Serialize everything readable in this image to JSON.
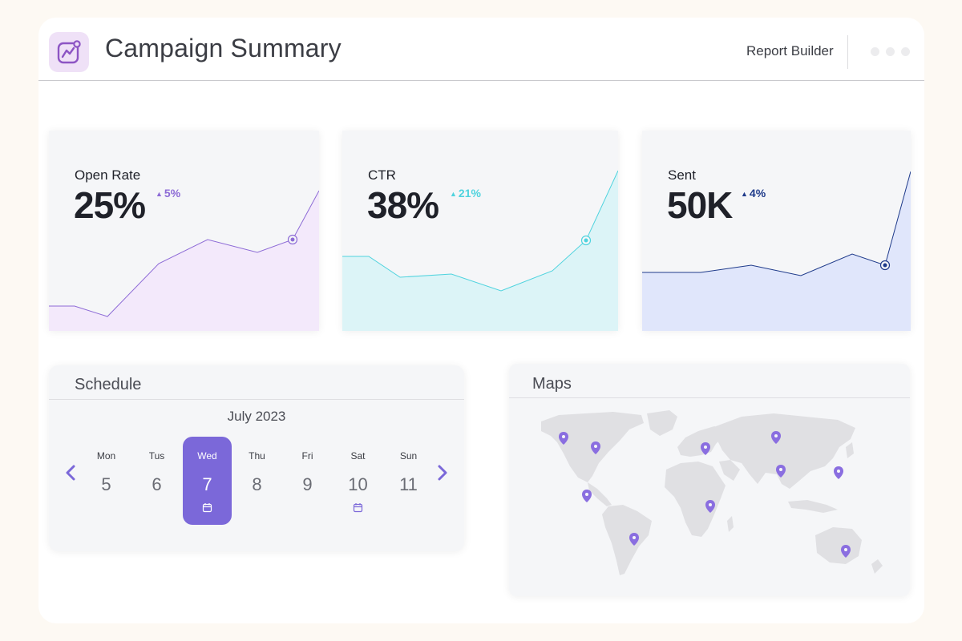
{
  "header": {
    "title": "Campaign Summary",
    "report_builder_label": "Report Builder",
    "logo_icon": "trend-chart-icon",
    "menu_icon": "more-dots-icon"
  },
  "metrics": [
    {
      "label": "Open Rate",
      "value": "25%",
      "delta": "5%",
      "trend": "up",
      "color": "#8d6bd6",
      "fill": "#f3e9fb"
    },
    {
      "label": "CTR",
      "value": "38%",
      "delta": "21%",
      "trend": "up",
      "color": "#4fd3de",
      "fill": "#dcf4f7"
    },
    {
      "label": "Sent",
      "value": "50K",
      "delta": "4%",
      "trend": "up",
      "color": "#1e3a8a",
      "fill": "#e0e6fb"
    }
  ],
  "schedule": {
    "title": "Schedule",
    "month": "July 2023",
    "prev_icon": "chevron-left-icon",
    "next_icon": "chevron-right-icon",
    "days": [
      {
        "name": "Mon",
        "num": "5",
        "selected": false,
        "event": false
      },
      {
        "name": "Tus",
        "num": "6",
        "selected": false,
        "event": false
      },
      {
        "name": "Wed",
        "num": "7",
        "selected": true,
        "event": true
      },
      {
        "name": "Thu",
        "num": "8",
        "selected": false,
        "event": false
      },
      {
        "name": "Fri",
        "num": "9",
        "selected": false,
        "event": false
      },
      {
        "name": "Sat",
        "num": "10",
        "selected": false,
        "event": true
      },
      {
        "name": "Sun",
        "num": "11",
        "selected": false,
        "event": false
      }
    ],
    "accent": "#7b68d9"
  },
  "maps": {
    "title": "Maps",
    "pin_icon": "map-pin-icon",
    "pin_color": "#7b68d9"
  }
}
